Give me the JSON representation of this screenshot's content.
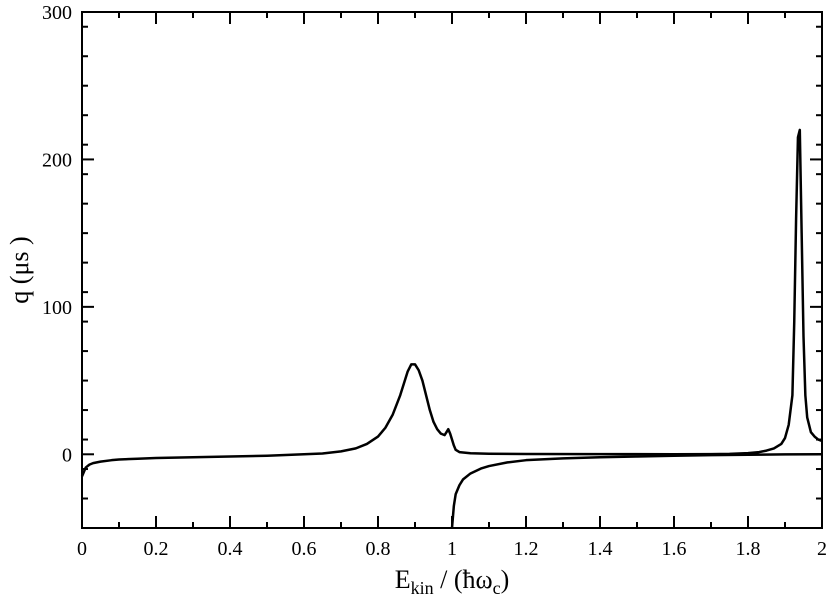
{
  "chart_data": {
    "type": "line",
    "xlabel": {
      "main": "E",
      "sub": "kin",
      "mid": " / (ħω",
      "sub2": "c",
      "end": ")"
    },
    "ylabel": "q (μs )",
    "xlim": [
      0,
      2
    ],
    "ylim": [
      -50,
      300
    ],
    "xticks": [
      0,
      0.2,
      0.4,
      0.6,
      0.8,
      1,
      1.2,
      1.4,
      1.6,
      1.8,
      2
    ],
    "xtick_labels": [
      "0",
      "0.2",
      "0.4",
      "0.6",
      "0.8",
      "1",
      "1.2",
      "1.4",
      "1.6",
      "1.8",
      "2"
    ],
    "yticks": [
      0,
      100,
      200,
      300
    ],
    "ytick_labels": [
      "0",
      "100",
      "200",
      "300"
    ],
    "grid": false,
    "series": [
      {
        "color": "#000000",
        "x": [
          0.0,
          0.005,
          0.01,
          0.02,
          0.03,
          0.05,
          0.08,
          0.1,
          0.15,
          0.2,
          0.3,
          0.4,
          0.5,
          0.6,
          0.65,
          0.7,
          0.74,
          0.77,
          0.8,
          0.82,
          0.84,
          0.86,
          0.87,
          0.88,
          0.89,
          0.9,
          0.91,
          0.92,
          0.93,
          0.94,
          0.95,
          0.96,
          0.97,
          0.98,
          0.985,
          0.99,
          0.995,
          1.0,
          1.005,
          1.01,
          1.02,
          1.05,
          1.1,
          1.2,
          1.4,
          1.6,
          1.7,
          1.75,
          1.8,
          1.83,
          1.85,
          1.87,
          1.89,
          1.9,
          1.91,
          1.92,
          1.925,
          1.93,
          1.935,
          1.94,
          1.945,
          1.95,
          1.955,
          1.96,
          1.97,
          1.98,
          1.99,
          2.0
        ],
        "y": [
          -15,
          -12,
          -9,
          -7,
          -6,
          -5,
          -4,
          -3.5,
          -3,
          -2.5,
          -2,
          -1.5,
          -1,
          0,
          0.5,
          2,
          4,
          7,
          12,
          18,
          27,
          40,
          48,
          56,
          61,
          61,
          57,
          50,
          40,
          30,
          22,
          17,
          14,
          13,
          15,
          17,
          14,
          10,
          6,
          3,
          1.5,
          0.7,
          0.4,
          0.2,
          0.1,
          0.05,
          0.1,
          0.3,
          0.8,
          1.5,
          2.5,
          4,
          7,
          11,
          20,
          40,
          90,
          160,
          215,
          220,
          150,
          80,
          40,
          25,
          15,
          12,
          10,
          9
        ]
      },
      {
        "color": "#000000",
        "x": [
          1.0,
          1.002,
          1.005,
          1.01,
          1.02,
          1.03,
          1.05,
          1.08,
          1.1,
          1.15,
          1.2,
          1.3,
          1.4,
          1.5,
          1.6,
          1.7,
          1.8,
          1.9,
          2.0
        ],
        "y": [
          -50,
          -44,
          -35,
          -27,
          -21,
          -17,
          -13,
          -9.5,
          -8,
          -5.5,
          -4,
          -2.8,
          -2,
          -1.5,
          -1,
          -0.6,
          -0.3,
          -0.1,
          0
        ]
      }
    ]
  }
}
